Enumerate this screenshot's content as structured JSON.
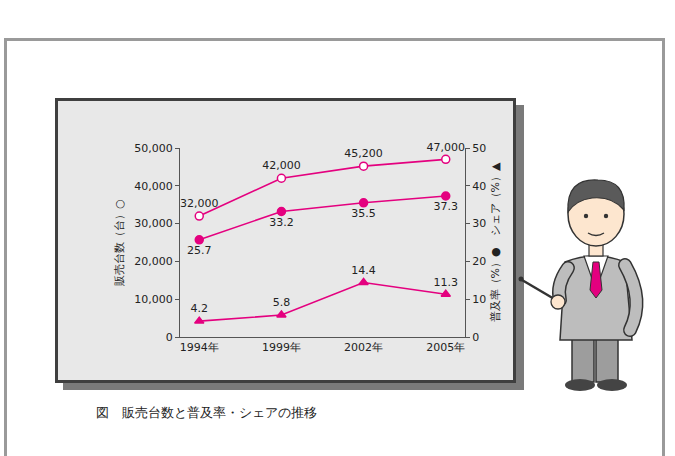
{
  "chart_data": {
    "type": "line",
    "title": "図　販売台数と普及率・シェアの推移",
    "categories": [
      "1994年",
      "1999年",
      "2002年",
      "2005年"
    ],
    "ylabel": "販売台数（台）○",
    "y2label": "普及率（%）●　シェア（%）▲",
    "ylim": [
      0,
      50000
    ],
    "yticks": [
      0,
      {
        "value": 10000,
        "label": "10,000"
      },
      {
        "value": 20000,
        "label": "20,000"
      },
      {
        "value": 30000,
        "label": "30,000"
      },
      {
        "value": 40000,
        "label": "40,000"
      },
      {
        "value": 50000,
        "label": "50,000"
      }
    ],
    "y2lim": [
      0,
      50
    ],
    "y2ticks": [
      0,
      10,
      20,
      30,
      40,
      50
    ],
    "grid": false,
    "data_labels": true,
    "series": [
      {
        "color": "#e4007f",
        "marker": "circle-open",
        "values": [
          32000,
          42000,
          45200,
          47000
        ],
        "value_labels": [
          "32,000",
          "42,000",
          "45,200",
          "47,000"
        ]
      },
      {
        "color": "#e4007f",
        "marker": "circle",
        "axis": "y2",
        "values": [
          25.7,
          33.2,
          35.5,
          37.3
        ]
      },
      {
        "color": "#e4007f",
        "marker": "triangle-up",
        "axis": "y2",
        "values": [
          4.2,
          5.8,
          14.4,
          11.3
        ]
      }
    ]
  }
}
